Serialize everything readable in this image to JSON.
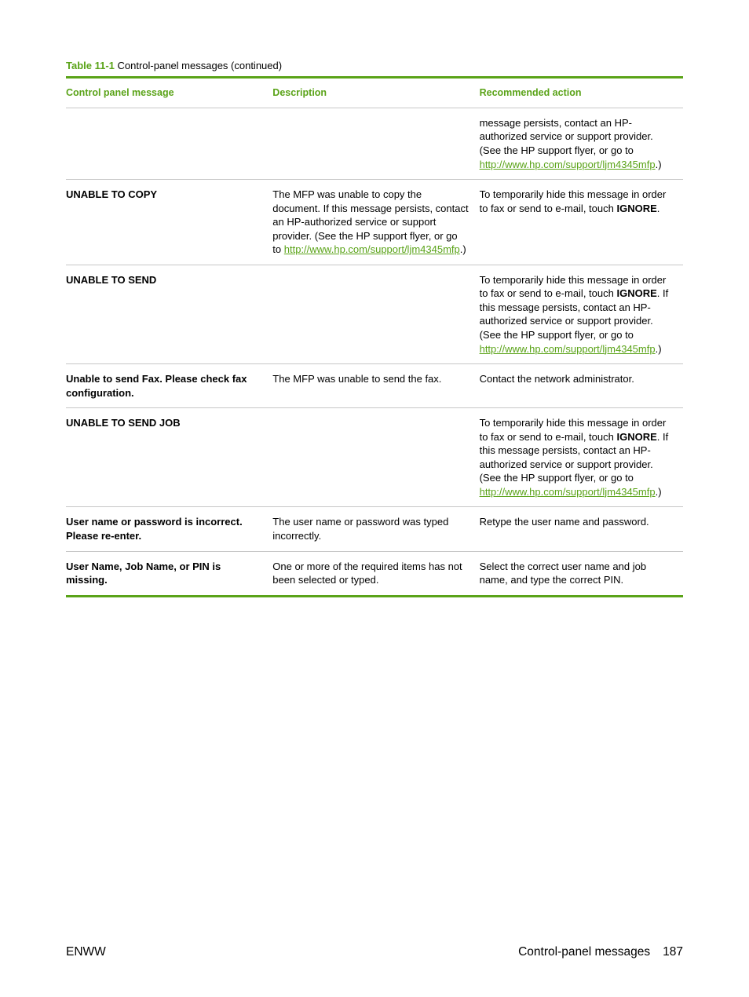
{
  "caption": {
    "number": "Table 11-1",
    "title": "  Control-panel messages (continued)"
  },
  "headers": {
    "c1": "Control panel message",
    "c2": "Description",
    "c3": "Recommended action"
  },
  "support_url": "http://www.hp.com/support/ljm4345mfp",
  "rows": {
    "r0": {
      "msg": "",
      "desc": "",
      "act_pre": "message persists, contact an HP-authorized service or support provider. (See the HP support flyer, or go to ",
      "act_post": ".)"
    },
    "r1": {
      "msg": "UNABLE TO COPY",
      "desc_pre": "The MFP was unable to copy the document. If this message persists, contact an HP-authorized service or support provider. (See the HP support flyer, or go to ",
      "desc_post": ".)",
      "act_pre": "To temporarily hide this message in order to fax or send to e-mail, touch ",
      "act_bold": "IGNORE",
      "act_post": "."
    },
    "r2": {
      "msg": "UNABLE TO SEND",
      "desc": "",
      "act_pre": "To temporarily hide this message in order to fax or send to e-mail, touch ",
      "act_bold": "IGNORE",
      "act_mid": ". If this message persists, contact an HP-authorized service or support provider. (See the HP support flyer, or go to ",
      "act_post": ".)"
    },
    "r3": {
      "msg": "Unable to send Fax. Please check fax configuration.",
      "desc": "The MFP was unable to send the fax.",
      "act": "Contact the network administrator."
    },
    "r4": {
      "msg": "UNABLE TO SEND JOB",
      "desc": "",
      "act_pre": "To temporarily hide this message in order to fax or send to e-mail, touch ",
      "act_bold": "IGNORE",
      "act_mid": ". If this message persists, contact an HP-authorized service or support provider. (See the HP support flyer, or go to ",
      "act_post": ".)"
    },
    "r5": {
      "msg": "User name or password is incorrect. Please re-enter.",
      "desc": "The user name or password was typed incorrectly.",
      "act": "Retype the user name and password."
    },
    "r6": {
      "msg": "User Name, Job Name, or PIN is missing.",
      "desc": "One or more of the required items has not been selected or typed.",
      "act": "Select the correct user name and job name, and type the correct PIN."
    }
  },
  "footer": {
    "left": "ENWW",
    "right_label": "Control-panel messages",
    "page": "187"
  }
}
